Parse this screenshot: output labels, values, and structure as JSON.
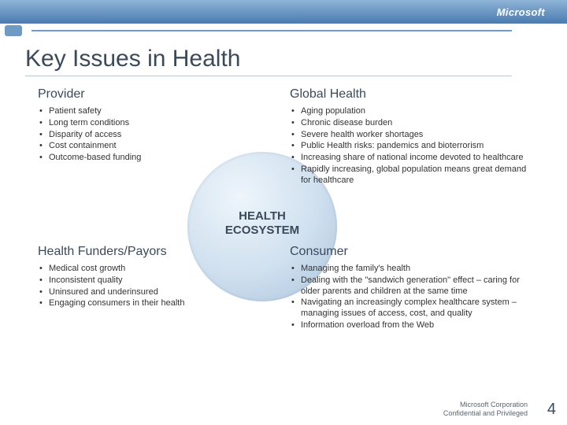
{
  "brand": {
    "logo_text": "Microsoft"
  },
  "accent": {
    "dot_color": "#6d9bc5",
    "line_color": "#6d9bc5"
  },
  "title": "Key Issues in Health",
  "center_label_line1": "HEALTH",
  "center_label_line2": "ECOSYSTEM",
  "quadrants": {
    "provider": {
      "heading": "Provider",
      "items": [
        "Patient safety",
        "Long term conditions",
        "Disparity of access",
        "Cost containment",
        "Outcome-based funding"
      ]
    },
    "global": {
      "heading": "Global Health",
      "items": [
        "Aging population",
        "Chronic disease burden",
        "Severe health worker shortages",
        "Public Health risks: pandemics and bioterrorism",
        "Increasing share of national income devoted to healthcare",
        "Rapidly increasing, global population means great demand for healthcare"
      ]
    },
    "funders": {
      "heading": "Health Funders/Payors",
      "items": [
        "Medical cost growth",
        "Inconsistent quality",
        "Uninsured and underinsured",
        "Engaging consumers in their health"
      ]
    },
    "consumer": {
      "heading": "Consumer",
      "items": [
        "Managing the family's health",
        "Dealing with the \"sandwich generation\" effect – caring for older parents and children at the same time",
        "Navigating an increasingly complex healthcare system – managing issues of access, cost, and quality",
        "Information overload from the Web"
      ]
    }
  },
  "footer": {
    "line1": "Microsoft Corporation",
    "line2": "Confidential and Privileged"
  },
  "page_number": "4",
  "colors": {
    "title_color": "#3a4a5a",
    "body_text": "#333333"
  }
}
